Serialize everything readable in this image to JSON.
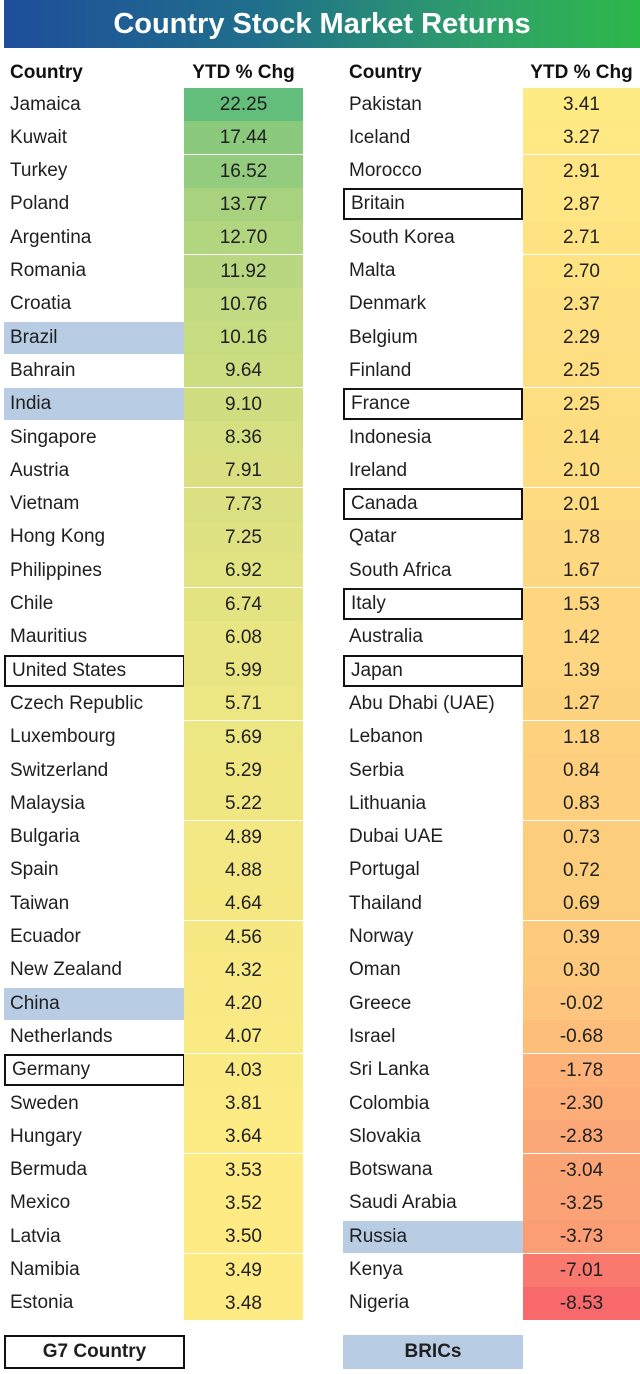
{
  "title": "Country Stock Market Returns",
  "headers": {
    "country": "Country",
    "ytd": "YTD % Chg"
  },
  "legend": {
    "g7": "G7 Country",
    "brics": "BRICs"
  },
  "colors": {
    "title_start": "#1f4e9b",
    "title_end": "#2eb84a",
    "high": "#63be7b",
    "mid": "#ffeb84",
    "low": "#f8696b",
    "bric_fill": "#b8cce4",
    "g7_border": "#111111"
  },
  "chart_data": {
    "type": "table",
    "title": "Country Stock Market Returns",
    "columns": [
      "Country",
      "YTD % Chg"
    ],
    "rows": [
      {
        "country": "Jamaica",
        "ytd": "22.25",
        "group": ""
      },
      {
        "country": "Kuwait",
        "ytd": "17.44",
        "group": ""
      },
      {
        "country": "Turkey",
        "ytd": "16.52",
        "group": ""
      },
      {
        "country": "Poland",
        "ytd": "13.77",
        "group": ""
      },
      {
        "country": "Argentina",
        "ytd": "12.70",
        "group": ""
      },
      {
        "country": "Romania",
        "ytd": "11.92",
        "group": ""
      },
      {
        "country": "Croatia",
        "ytd": "10.76",
        "group": ""
      },
      {
        "country": "Brazil",
        "ytd": "10.16",
        "group": "bric"
      },
      {
        "country": "Bahrain",
        "ytd": "9.64",
        "group": ""
      },
      {
        "country": "India",
        "ytd": "9.10",
        "group": "bric"
      },
      {
        "country": "Singapore",
        "ytd": "8.36",
        "group": ""
      },
      {
        "country": "Austria",
        "ytd": "7.91",
        "group": ""
      },
      {
        "country": "Vietnam",
        "ytd": "7.73",
        "group": ""
      },
      {
        "country": "Hong Kong",
        "ytd": "7.25",
        "group": ""
      },
      {
        "country": "Philippines",
        "ytd": "6.92",
        "group": ""
      },
      {
        "country": "Chile",
        "ytd": "6.74",
        "group": ""
      },
      {
        "country": "Mauritius",
        "ytd": "6.08",
        "group": ""
      },
      {
        "country": "United States",
        "ytd": "5.99",
        "group": "g7"
      },
      {
        "country": "Czech Republic",
        "ytd": "5.71",
        "group": ""
      },
      {
        "country": "Luxembourg",
        "ytd": "5.69",
        "group": ""
      },
      {
        "country": "Switzerland",
        "ytd": "5.29",
        "group": ""
      },
      {
        "country": "Malaysia",
        "ytd": "5.22",
        "group": ""
      },
      {
        "country": "Bulgaria",
        "ytd": "4.89",
        "group": ""
      },
      {
        "country": "Spain",
        "ytd": "4.88",
        "group": ""
      },
      {
        "country": "Taiwan",
        "ytd": "4.64",
        "group": ""
      },
      {
        "country": "Ecuador",
        "ytd": "4.56",
        "group": ""
      },
      {
        "country": "New Zealand",
        "ytd": "4.32",
        "group": ""
      },
      {
        "country": "China",
        "ytd": "4.20",
        "group": "bric"
      },
      {
        "country": "Netherlands",
        "ytd": "4.07",
        "group": ""
      },
      {
        "country": "Germany",
        "ytd": "4.03",
        "group": "g7"
      },
      {
        "country": "Sweden",
        "ytd": "3.81",
        "group": ""
      },
      {
        "country": "Hungary",
        "ytd": "3.64",
        "group": ""
      },
      {
        "country": "Bermuda",
        "ytd": "3.53",
        "group": ""
      },
      {
        "country": "Mexico",
        "ytd": "3.52",
        "group": ""
      },
      {
        "country": "Latvia",
        "ytd": "3.50",
        "group": ""
      },
      {
        "country": "Namibia",
        "ytd": "3.49",
        "group": ""
      },
      {
        "country": "Estonia",
        "ytd": "3.48",
        "group": ""
      },
      {
        "country": "Pakistan",
        "ytd": "3.41",
        "group": ""
      },
      {
        "country": "Iceland",
        "ytd": "3.27",
        "group": ""
      },
      {
        "country": "Morocco",
        "ytd": "2.91",
        "group": ""
      },
      {
        "country": "Britain",
        "ytd": "2.87",
        "group": "g7"
      },
      {
        "country": "South Korea",
        "ytd": "2.71",
        "group": ""
      },
      {
        "country": "Malta",
        "ytd": "2.70",
        "group": ""
      },
      {
        "country": "Denmark",
        "ytd": "2.37",
        "group": ""
      },
      {
        "country": "Belgium",
        "ytd": "2.29",
        "group": ""
      },
      {
        "country": "Finland",
        "ytd": "2.25",
        "group": ""
      },
      {
        "country": "France",
        "ytd": "2.25",
        "group": "g7"
      },
      {
        "country": "Indonesia",
        "ytd": "2.14",
        "group": ""
      },
      {
        "country": "Ireland",
        "ytd": "2.10",
        "group": ""
      },
      {
        "country": "Canada",
        "ytd": "2.01",
        "group": "g7"
      },
      {
        "country": "Qatar",
        "ytd": "1.78",
        "group": ""
      },
      {
        "country": "South Africa",
        "ytd": "1.67",
        "group": ""
      },
      {
        "country": "Italy",
        "ytd": "1.53",
        "group": "g7"
      },
      {
        "country": "Australia",
        "ytd": "1.42",
        "group": ""
      },
      {
        "country": "Japan",
        "ytd": "1.39",
        "group": "g7"
      },
      {
        "country": "Abu Dhabi (UAE)",
        "ytd": "1.27",
        "group": ""
      },
      {
        "country": "Lebanon",
        "ytd": "1.18",
        "group": ""
      },
      {
        "country": "Serbia",
        "ytd": "0.84",
        "group": ""
      },
      {
        "country": "Lithuania",
        "ytd": "0.83",
        "group": ""
      },
      {
        "country": "Dubai UAE",
        "ytd": "0.73",
        "group": ""
      },
      {
        "country": "Portugal",
        "ytd": "0.72",
        "group": ""
      },
      {
        "country": "Thailand",
        "ytd": "0.69",
        "group": ""
      },
      {
        "country": "Norway",
        "ytd": "0.39",
        "group": ""
      },
      {
        "country": "Oman",
        "ytd": "0.30",
        "group": ""
      },
      {
        "country": "Greece",
        "ytd": "-0.02",
        "group": ""
      },
      {
        "country": "Israel",
        "ytd": "-0.68",
        "group": ""
      },
      {
        "country": "Sri Lanka",
        "ytd": "-1.78",
        "group": ""
      },
      {
        "country": "Colombia",
        "ytd": "-2.30",
        "group": ""
      },
      {
        "country": "Slovakia",
        "ytd": "-2.83",
        "group": ""
      },
      {
        "country": "Botswana",
        "ytd": "-3.04",
        "group": ""
      },
      {
        "country": "Saudi Arabia",
        "ytd": "-3.25",
        "group": ""
      },
      {
        "country": "Russia",
        "ytd": "-3.73",
        "group": "bric"
      },
      {
        "country": "Kenya",
        "ytd": "-7.01",
        "group": ""
      },
      {
        "country": "Nigeria",
        "ytd": "-8.53",
        "group": ""
      }
    ]
  }
}
